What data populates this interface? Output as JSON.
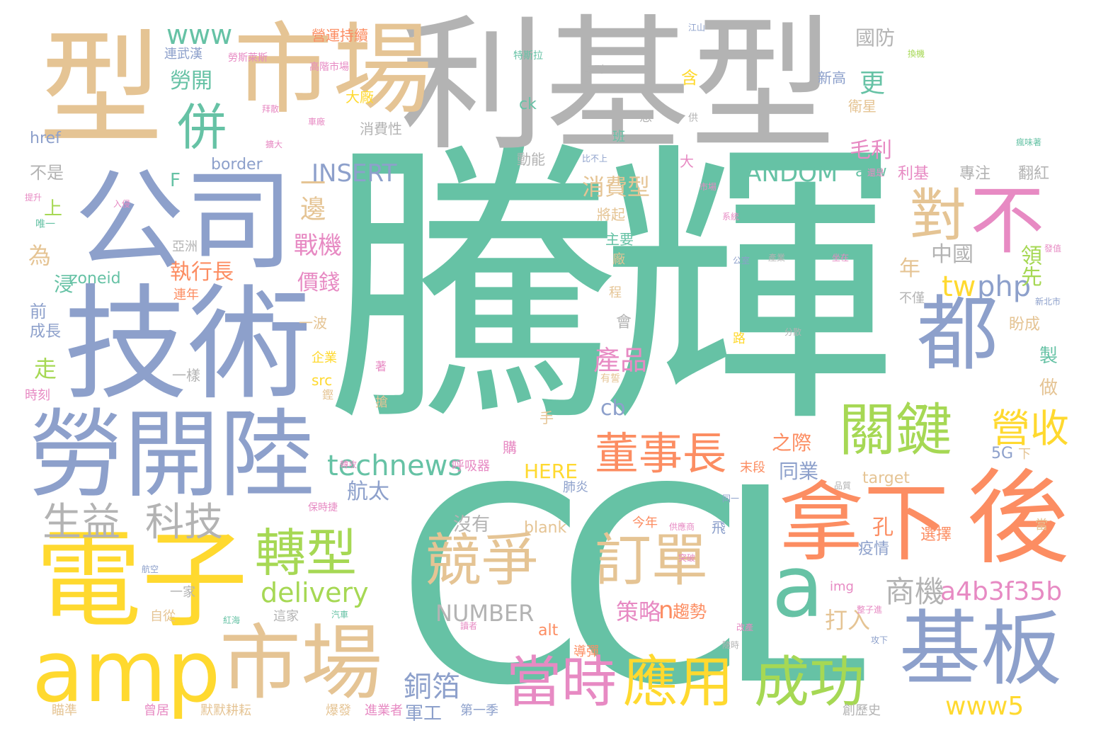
{
  "cloud": {
    "palette": {
      "teal": "#66c2a5",
      "orange": "#fc8d62",
      "blue": "#8da0cb",
      "pink": "#e78ac3",
      "green": "#a6d854",
      "yellow": "#ffd92f",
      "tan": "#e5c494",
      "gray": "#b3b3b3"
    },
    "words": [
      {
        "text": "騰輝",
        "weight": 1.0,
        "color": "teal"
      },
      {
        "text": "CCL",
        "weight": 0.95,
        "color": "teal"
      },
      {
        "text": "利基型",
        "weight": 0.6,
        "color": "gray"
      },
      {
        "text": "市場",
        "weight": 0.55,
        "color": "tan"
      },
      {
        "text": "型",
        "weight": 0.5,
        "color": "tan"
      },
      {
        "text": "公司",
        "weight": 0.5,
        "color": "blue"
      },
      {
        "text": "技術",
        "weight": 0.5,
        "color": "blue"
      },
      {
        "text": "勞開陸",
        "weight": 0.45,
        "color": "blue"
      },
      {
        "text": "電子",
        "weight": 0.45,
        "color": "yellow"
      },
      {
        "text": "amp",
        "weight": 0.4,
        "color": "yellow"
      },
      {
        "text": "市場",
        "weight": 0.38,
        "color": "tan"
      },
      {
        "text": "拿下",
        "weight": 0.42,
        "color": "orange"
      },
      {
        "text": "後",
        "weight": 0.42,
        "color": "orange"
      },
      {
        "text": "a",
        "weight": 0.35,
        "color": "teal"
      },
      {
        "text": "基板",
        "weight": 0.38,
        "color": "blue"
      },
      {
        "text": "都",
        "weight": 0.38,
        "color": "blue"
      },
      {
        "text": "不",
        "weight": 0.3,
        "color": "pink"
      },
      {
        "text": "對",
        "weight": 0.25,
        "color": "tan"
      },
      {
        "text": "關鍵",
        "weight": 0.3,
        "color": "green"
      },
      {
        "text": "競爭",
        "weight": 0.32,
        "color": "tan"
      },
      {
        "text": "訂單",
        "weight": 0.32,
        "color": "tan"
      },
      {
        "text": "轉型",
        "weight": 0.28,
        "color": "green"
      },
      {
        "text": "當時",
        "weight": 0.3,
        "color": "pink"
      },
      {
        "text": "應用",
        "weight": 0.3,
        "color": "yellow"
      },
      {
        "text": "成功",
        "weight": 0.3,
        "color": "green"
      },
      {
        "text": "董事長",
        "weight": 0.25,
        "color": "orange"
      },
      {
        "text": "營收",
        "weight": 0.22,
        "color": "yellow"
      },
      {
        "text": "生益",
        "weight": 0.22,
        "color": "gray"
      },
      {
        "text": "科技",
        "weight": 0.22,
        "color": "gray"
      },
      {
        "text": "併",
        "weight": 0.22,
        "color": "teal"
      },
      {
        "text": "technews",
        "weight": 0.2,
        "color": "teal"
      },
      {
        "text": "delivery",
        "weight": 0.18,
        "color": "green"
      },
      {
        "text": "a4b3f35b",
        "weight": 0.17,
        "color": "pink"
      },
      {
        "text": "www5",
        "weight": 0.16,
        "color": "yellow"
      },
      {
        "text": "商機",
        "weight": 0.18,
        "color": "gray"
      },
      {
        "text": "銅箔",
        "weight": 0.17,
        "color": "blue"
      },
      {
        "text": "tw",
        "weight": 0.17,
        "color": "yellow"
      },
      {
        "text": "php",
        "weight": 0.17,
        "color": "blue"
      },
      {
        "text": "www",
        "weight": 0.14,
        "color": "teal"
      },
      {
        "text": "INSERT",
        "weight": 0.14,
        "color": "blue"
      },
      {
        "text": "RANDOM",
        "weight": 0.14,
        "color": "teal"
      },
      {
        "text": "NUMBER",
        "weight": 0.13,
        "color": "gray"
      },
      {
        "text": "HERE",
        "weight": 0.1,
        "color": "yellow"
      },
      {
        "text": "cb",
        "weight": 0.1,
        "color": "blue"
      },
      {
        "text": "n",
        "weight": 0.1,
        "color": "orange"
      },
      {
        "text": "趨勢",
        "weight": 0.08,
        "color": "orange"
      },
      {
        "text": "策略",
        "weight": 0.1,
        "color": "pink"
      },
      {
        "text": "打入",
        "weight": 0.1,
        "color": "tan"
      },
      {
        "text": "產品",
        "weight": 0.1,
        "color": "pink"
      },
      {
        "text": "航太",
        "weight": 0.1,
        "color": "blue"
      },
      {
        "text": "同業",
        "weight": 0.1,
        "color": "blue"
      },
      {
        "text": "之際",
        "weight": 0.09,
        "color": "orange"
      },
      {
        "text": "消費型",
        "weight": 0.1,
        "color": "tan"
      },
      {
        "text": "毛利",
        "weight": 0.1,
        "color": "pink"
      },
      {
        "text": "更",
        "weight": 0.1,
        "color": "teal"
      },
      {
        "text": "勞開",
        "weight": 0.09,
        "color": "teal"
      },
      {
        "text": "一邊",
        "weight": 0.1,
        "color": "tan"
      },
      {
        "text": "戰機",
        "weight": 0.1,
        "color": "pink"
      },
      {
        "text": "執行長",
        "weight": 0.09,
        "color": "orange"
      },
      {
        "text": "價錢",
        "weight": 0.09,
        "color": "pink"
      },
      {
        "text": "領先",
        "weight": 0.08,
        "color": "green"
      },
      {
        "text": "中國",
        "weight": 0.09,
        "color": "gray"
      },
      {
        "text": "年",
        "weight": 0.08,
        "color": "tan"
      },
      {
        "text": "國防",
        "weight": 0.08,
        "color": "gray"
      },
      {
        "text": "營運持續",
        "weight": 0.06,
        "color": "orange"
      },
      {
        "text": "軍工",
        "weight": 0.07,
        "color": "blue"
      },
      {
        "text": "沒有",
        "weight": 0.07,
        "color": "gray"
      },
      {
        "text": "孔",
        "weight": 0.07,
        "color": "orange"
      },
      {
        "text": "選擇",
        "weight": 0.06,
        "color": "orange"
      },
      {
        "text": "疫情",
        "weight": 0.06,
        "color": "blue"
      },
      {
        "text": "做",
        "weight": 0.06,
        "color": "tan"
      },
      {
        "text": "製",
        "weight": 0.06,
        "color": "teal"
      },
      {
        "text": "盼成",
        "weight": 0.05,
        "color": "tan"
      },
      {
        "text": "5G",
        "weight": 0.05,
        "color": "blue"
      },
      {
        "text": "target",
        "weight": 0.05,
        "color": "tan"
      },
      {
        "text": "blank",
        "weight": 0.05,
        "color": "tan"
      },
      {
        "text": "img",
        "weight": 0.04,
        "color": "pink"
      },
      {
        "text": "alt",
        "weight": 0.04,
        "color": "orange"
      },
      {
        "text": "src",
        "weight": 0.04,
        "color": "yellow"
      },
      {
        "text": "href",
        "weight": 0.04,
        "color": "blue"
      },
      {
        "text": "border",
        "weight": 0.05,
        "color": "blue"
      },
      {
        "text": "zoneid",
        "weight": 0.05,
        "color": "teal"
      },
      {
        "text": "avw",
        "weight": 0.05,
        "color": "teal"
      },
      {
        "text": "ck",
        "weight": 0.05,
        "color": "teal"
      },
      {
        "text": "F",
        "weight": 0.06,
        "color": "teal"
      },
      {
        "text": "上",
        "weight": 0.06,
        "color": "green"
      },
      {
        "text": "為",
        "weight": 0.07,
        "color": "tan"
      },
      {
        "text": "浸",
        "weight": 0.06,
        "color": "teal"
      },
      {
        "text": "前",
        "weight": 0.05,
        "color": "blue"
      },
      {
        "text": "成長",
        "weight": 0.05,
        "color": "blue"
      },
      {
        "text": "走",
        "weight": 0.06,
        "color": "green"
      },
      {
        "text": "時刻",
        "weight": 0.04,
        "color": "pink"
      },
      {
        "text": "不是",
        "weight": 0.05,
        "color": "gray"
      },
      {
        "text": "利基",
        "weight": 0.05,
        "color": "pink"
      },
      {
        "text": "專注",
        "weight": 0.05,
        "color": "gray"
      },
      {
        "text": "翻紅",
        "weight": 0.05,
        "color": "gray"
      },
      {
        "text": "新高",
        "weight": 0.05,
        "color": "blue"
      },
      {
        "text": "衛星",
        "weight": 0.05,
        "color": "tan"
      },
      {
        "text": "含",
        "weight": 0.05,
        "color": "yellow"
      },
      {
        "text": "大廠",
        "weight": 0.05,
        "color": "yellow"
      },
      {
        "text": "消費性",
        "weight": 0.05,
        "color": "gray"
      },
      {
        "text": "動能",
        "weight": 0.05,
        "color": "gray"
      },
      {
        "text": "主要",
        "weight": 0.05,
        "color": "teal"
      },
      {
        "text": "將起",
        "weight": 0.05,
        "color": "tan"
      },
      {
        "text": "廠",
        "weight": 0.04,
        "color": "tan"
      },
      {
        "text": "程",
        "weight": 0.04,
        "color": "tan"
      },
      {
        "text": "會",
        "weight": 0.05,
        "color": "gray"
      },
      {
        "text": "一波",
        "weight": 0.04,
        "color": "tan"
      },
      {
        "text": "一樣",
        "weight": 0.04,
        "color": "gray"
      },
      {
        "text": "企業",
        "weight": 0.04,
        "color": "yellow"
      },
      {
        "text": "手",
        "weight": 0.04,
        "color": "tan"
      },
      {
        "text": "連年",
        "weight": 0.04,
        "color": "orange"
      },
      {
        "text": "亞洲",
        "weight": 0.04,
        "color": "gray"
      },
      {
        "text": "連武漢",
        "weight": 0.04,
        "color": "blue"
      },
      {
        "text": "呼吸器",
        "weight": 0.04,
        "color": "pink"
      },
      {
        "text": "購",
        "weight": 0.04,
        "color": "pink"
      },
      {
        "text": "今年",
        "weight": 0.04,
        "color": "orange"
      },
      {
        "text": "飛",
        "weight": 0.04,
        "color": "blue"
      },
      {
        "text": "末段",
        "weight": 0.04,
        "color": "orange"
      },
      {
        "text": "肺炎",
        "weight": 0.04,
        "color": "blue"
      },
      {
        "text": "一家",
        "weight": 0.04,
        "color": "gray"
      },
      {
        "text": "自從",
        "weight": 0.04,
        "color": "tan"
      },
      {
        "text": "這家",
        "weight": 0.04,
        "color": "gray"
      },
      {
        "text": "導彈",
        "weight": 0.04,
        "color": "orange"
      },
      {
        "text": "創歷史",
        "weight": 0.04,
        "color": "gray"
      },
      {
        "text": "第一季",
        "weight": 0.04,
        "color": "blue"
      },
      {
        "text": "進業者",
        "weight": 0.04,
        "color": "pink"
      },
      {
        "text": "爆發",
        "weight": 0.04,
        "color": "tan"
      },
      {
        "text": "默默耕耘",
        "weight": 0.04,
        "color": "tan"
      },
      {
        "text": "曾居",
        "weight": 0.04,
        "color": "pink"
      },
      {
        "text": "瞄準",
        "weight": 0.04,
        "color": "tan"
      },
      {
        "text": "大",
        "weight": 0.04,
        "color": "pink"
      },
      {
        "text": "班",
        "weight": 0.04,
        "color": "teal"
      },
      {
        "text": "憑",
        "weight": 0.04,
        "color": "gray"
      },
      {
        "text": "不僅",
        "weight": 0.04,
        "color": "gray"
      },
      {
        "text": "當",
        "weight": 0.04,
        "color": "tan"
      },
      {
        "text": "下",
        "weight": 0.04,
        "color": "tan"
      },
      {
        "text": "搶",
        "weight": 0.04,
        "color": "tan"
      },
      {
        "text": "鏗",
        "weight": 0.03,
        "color": "tan"
      },
      {
        "text": "路",
        "weight": 0.03,
        "color": "yellow"
      },
      {
        "text": "著",
        "weight": 0.03,
        "color": "pink"
      },
      {
        "text": "唯一",
        "weight": 0.03,
        "color": "teal"
      },
      {
        "text": "特斯拉",
        "weight": 0.03,
        "color": "teal"
      },
      {
        "text": "拿到",
        "weight": 0.03,
        "color": "gray"
      },
      {
        "text": "高階市場",
        "weight": 0.03,
        "color": "pink"
      },
      {
        "text": "勞斯萊斯",
        "weight": 0.03,
        "color": "pink"
      },
      {
        "text": "江山",
        "weight": 0.03,
        "color": "blue"
      },
      {
        "text": "供",
        "weight": 0.03,
        "color": "gray"
      },
      {
        "text": "比不上",
        "weight": 0.03,
        "color": "blue"
      },
      {
        "text": "還是",
        "weight": 0.03,
        "color": "pink"
      },
      {
        "text": "系統",
        "weight": 0.03,
        "color": "pink"
      },
      {
        "text": "新北市",
        "weight": 0.03,
        "color": "blue"
      },
      {
        "text": "分散",
        "weight": 0.03,
        "color": "gray"
      },
      {
        "text": "發值",
        "weight": 0.03,
        "color": "pink"
      },
      {
        "text": "瘋味著",
        "weight": 0.03,
        "color": "teal"
      },
      {
        "text": "公室",
        "weight": 0.03,
        "color": "blue"
      },
      {
        "text": "產業",
        "weight": 0.03,
        "color": "gray"
      },
      {
        "text": "坐在",
        "weight": 0.03,
        "color": "pink"
      },
      {
        "text": "同一",
        "weight": 0.03,
        "color": "blue"
      },
      {
        "text": "品質",
        "weight": 0.03,
        "color": "gray"
      },
      {
        "text": "供應商",
        "weight": 0.03,
        "color": "pink"
      },
      {
        "text": "突破",
        "weight": 0.03,
        "color": "pink"
      },
      {
        "text": "整子進",
        "weight": 0.03,
        "color": "pink"
      },
      {
        "text": "攻下",
        "weight": 0.03,
        "color": "blue"
      },
      {
        "text": "改產",
        "weight": 0.03,
        "color": "pink"
      },
      {
        "text": "隨時",
        "weight": 0.03,
        "color": "gray"
      },
      {
        "text": "有誓",
        "weight": 0.03,
        "color": "tan"
      },
      {
        "text": "保時捷",
        "weight": 0.03,
        "color": "pink"
      },
      {
        "text": "轉攻",
        "weight": 0.03,
        "color": "pink"
      },
      {
        "text": "汽車",
        "weight": 0.03,
        "color": "teal"
      },
      {
        "text": "紅海",
        "weight": 0.03,
        "color": "teal"
      },
      {
        "text": "航空",
        "weight": 0.03,
        "color": "blue"
      },
      {
        "text": "讀者",
        "weight": 0.03,
        "color": "pink"
      },
      {
        "text": "入侵",
        "weight": 0.03,
        "color": "pink"
      },
      {
        "text": "提升",
        "weight": 0.03,
        "color": "pink"
      },
      {
        "text": "擴大",
        "weight": 0.03,
        "color": "pink"
      },
      {
        "text": "拜散",
        "weight": 0.03,
        "color": "pink"
      },
      {
        "text": "換機",
        "weight": 0.03,
        "color": "green"
      },
      {
        "text": "車廠",
        "weight": 0.03,
        "color": "pink"
      },
      {
        "text": "市場",
        "weight": 0.03,
        "color": "pink"
      }
    ]
  }
}
